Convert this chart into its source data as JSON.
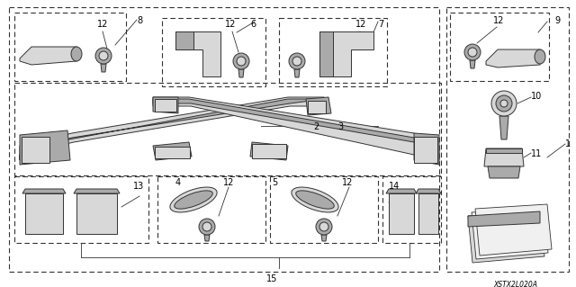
{
  "background_color": "#ffffff",
  "diagram_code": "XSTX2L020A",
  "fig_width": 6.4,
  "fig_height": 3.19,
  "dpi": 100,
  "label_fontsize": 7,
  "code_fontsize": 5.5,
  "line_color": "#333333",
  "fill_light": "#d8d8d8",
  "fill_dark": "#888888",
  "fill_mid": "#aaaaaa"
}
